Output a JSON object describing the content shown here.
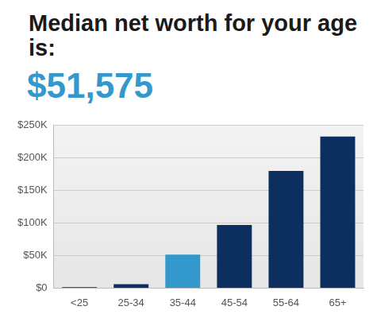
{
  "chart_data": {
    "type": "bar",
    "title": "Median net worth for your age is:",
    "subtitle": "$51,575",
    "categories": [
      "<25",
      "25-34",
      "35-44",
      "45-54",
      "55-64",
      "65+"
    ],
    "values": [
      1500,
      6000,
      51575,
      97000,
      180000,
      233000
    ],
    "colors": [
      "#0d2f5f",
      "#0d2f5f",
      "#3399cc",
      "#0d2f5f",
      "#0d2f5f",
      "#0d2f5f"
    ],
    "ylim": [
      0,
      250000
    ],
    "yticks": [
      {
        "value": 0,
        "label": "$0"
      },
      {
        "value": 50000,
        "label": "$50K"
      },
      {
        "value": 100000,
        "label": "$100K"
      },
      {
        "value": 150000,
        "label": "$150K"
      },
      {
        "value": 200000,
        "label": "$200K"
      },
      {
        "value": 250000,
        "label": "$250K"
      }
    ],
    "grid": true
  }
}
